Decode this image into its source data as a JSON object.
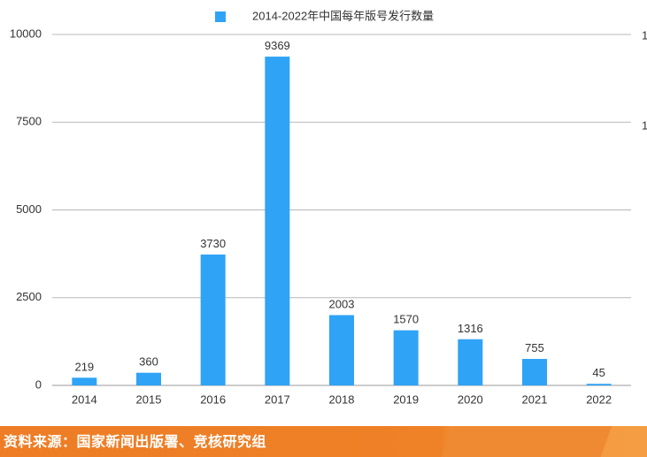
{
  "chart_data": {
    "type": "bar",
    "legend": "2014-2022年中国每年版号发行数量",
    "legend_position": "top",
    "categories": [
      "2014",
      "2015",
      "2016",
      "2017",
      "2018",
      "2019",
      "2020",
      "2021",
      "2022"
    ],
    "values": [
      219,
      360,
      3730,
      9369,
      2003,
      1570,
      1316,
      755,
      45
    ],
    "ylim": [
      0,
      10000
    ],
    "yticks": [
      "0",
      "2500",
      "5000",
      "7500",
      "10000"
    ],
    "right_ticks": [
      "1",
      "1"
    ],
    "grid": true,
    "bar_color": "#2fa3f6"
  },
  "source": "资料来源：国家新闻出版署、竞核研究组"
}
